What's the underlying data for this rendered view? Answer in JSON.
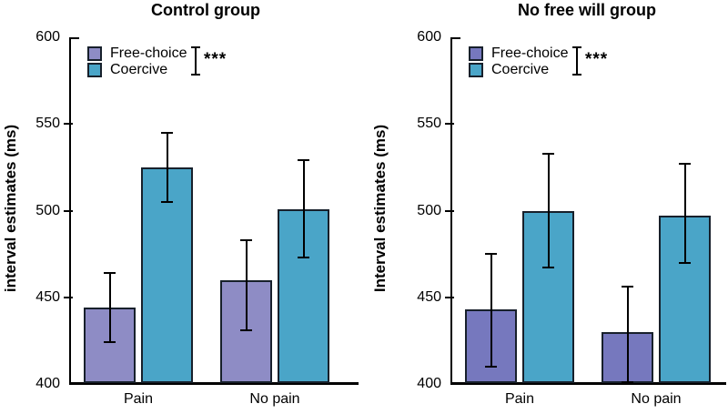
{
  "chart_data": [
    {
      "type": "bar",
      "title": "Control group",
      "ylabel": "interval estimates (ms)",
      "xlabel": "",
      "categories": [
        "Pain",
        "No pain"
      ],
      "series": [
        {
          "name": "Free-choice",
          "color": "#8E8CC5",
          "values": [
            444,
            460
          ],
          "error_low": [
            424,
            431
          ],
          "error_high": [
            464,
            483
          ]
        },
        {
          "name": "Coercive",
          "color": "#4AA5C8",
          "values": [
            525,
            501
          ],
          "error_low": [
            505,
            473
          ],
          "error_high": [
            545,
            529
          ]
        }
      ],
      "ylim": [
        400,
        600
      ],
      "yticks": [
        400,
        450,
        500,
        550,
        600
      ],
      "significance_label": "***",
      "legend_position": "top-left",
      "grid": false
    },
    {
      "type": "bar",
      "title": "No free will group",
      "ylabel": "Interval estimates (ms)",
      "xlabel": "",
      "categories": [
        "Pain",
        "No pain"
      ],
      "series": [
        {
          "name": "Free-choice",
          "color": "#7678BE",
          "values": [
            443,
            430
          ],
          "error_low": [
            410,
            401
          ],
          "error_high": [
            475,
            456
          ]
        },
        {
          "name": "Coercive",
          "color": "#4AA5C8",
          "values": [
            500,
            497
          ],
          "error_low": [
            467,
            470
          ],
          "error_high": [
            533,
            527
          ]
        }
      ],
      "ylim": [
        400,
        600
      ],
      "yticks": [
        400,
        450,
        500,
        550,
        600
      ],
      "significance_label": "***",
      "legend_position": "top-left",
      "grid": false
    }
  ],
  "style": {
    "bar_border_color": "#17202B",
    "axis_color": "#000000",
    "error_bar_color": "#000000",
    "background": "#FFFFFF",
    "text_color": "#000000"
  }
}
